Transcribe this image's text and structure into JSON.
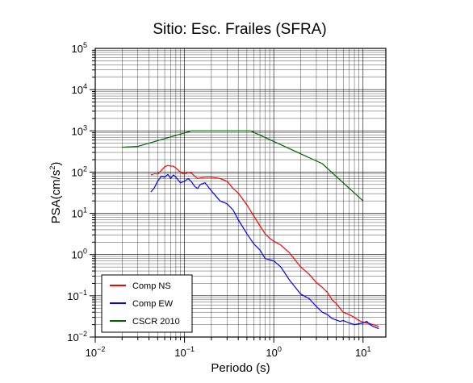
{
  "chart_data": {
    "type": "line",
    "title": "Sitio: Esc. Frailes (SFRA)",
    "xlabel": "Periodo (s)",
    "ylabel_main": "PSA(cm/s",
    "ylabel_sup": "2",
    "ylabel_close": ")",
    "xscale": "log",
    "yscale": "log",
    "xlim": [
      0.01,
      18
    ],
    "ylim": [
      0.01,
      100000
    ],
    "grid": true,
    "legend_position": "bottom-left",
    "x_tick_labels": [
      {
        "value": 0.01,
        "base": "10",
        "sup": "−2"
      },
      {
        "value": 0.1,
        "base": "10",
        "sup": "−1"
      },
      {
        "value": 1,
        "base": "10",
        "sup": "0"
      },
      {
        "value": 10,
        "base": "10",
        "sup": "1"
      }
    ],
    "y_tick_labels": [
      {
        "value": 0.01,
        "base": "10",
        "sup": "−2"
      },
      {
        "value": 0.1,
        "base": "10",
        "sup": "−1"
      },
      {
        "value": 1,
        "base": "10",
        "sup": "0"
      },
      {
        "value": 10,
        "base": "10",
        "sup": "1"
      },
      {
        "value": 100,
        "base": "10",
        "sup": "2"
      },
      {
        "value": 1000,
        "base": "10",
        "sup": "3"
      },
      {
        "value": 10000,
        "base": "10",
        "sup": "4"
      },
      {
        "value": 100000,
        "base": "10",
        "sup": "5"
      }
    ],
    "series": [
      {
        "name": "Comp NS",
        "color": "#ff0000",
        "x": [
          0.042,
          0.046,
          0.05,
          0.055,
          0.06,
          0.065,
          0.07,
          0.075,
          0.08,
          0.09,
          0.1,
          0.11,
          0.12,
          0.13,
          0.14,
          0.15,
          0.17,
          0.2,
          0.25,
          0.3,
          0.35,
          0.4,
          0.5,
          0.6,
          0.7,
          0.8,
          0.9,
          1.0,
          1.2,
          1.5,
          2.0,
          2.5,
          3.0,
          3.5,
          4.0,
          4.5,
          5.0,
          5.5,
          6.0,
          7.0,
          8.0,
          9.0,
          10.0,
          11.0,
          12.0,
          13.0,
          14.0,
          15.0
        ],
        "y": [
          85,
          92,
          90,
          110,
          135,
          145,
          140,
          140,
          125,
          100,
          90,
          100,
          95,
          80,
          70,
          72,
          75,
          75,
          70,
          60,
          40,
          31,
          16,
          8.5,
          5.0,
          3.2,
          2.5,
          2.1,
          1.7,
          1.1,
          0.5,
          0.33,
          0.21,
          0.16,
          0.12,
          0.08,
          0.065,
          0.05,
          0.04,
          0.035,
          0.03,
          0.025,
          0.023,
          0.022,
          0.021,
          0.02,
          0.019,
          0.018
        ]
      },
      {
        "name": "Comp EW",
        "color": "#0000ff",
        "x": [
          0.042,
          0.046,
          0.05,
          0.055,
          0.06,
          0.065,
          0.07,
          0.075,
          0.08,
          0.09,
          0.1,
          0.11,
          0.12,
          0.13,
          0.14,
          0.15,
          0.17,
          0.2,
          0.25,
          0.3,
          0.35,
          0.4,
          0.5,
          0.6,
          0.7,
          0.8,
          0.9,
          1.0,
          1.2,
          1.5,
          2.0,
          2.5,
          3.0,
          3.5,
          4.0,
          4.5,
          5.0,
          5.5,
          6.0,
          7.0,
          8.0,
          9.0,
          10.0,
          11.0,
          12.0,
          13.0,
          14.0,
          15.0
        ],
        "y": [
          33,
          42,
          60,
          80,
          75,
          88,
          70,
          85,
          75,
          55,
          60,
          70,
          58,
          45,
          40,
          50,
          55,
          35,
          20,
          17,
          12,
          7.0,
          3.2,
          1.8,
          1.3,
          0.8,
          0.75,
          0.7,
          0.5,
          0.24,
          0.11,
          0.085,
          0.055,
          0.04,
          0.035,
          0.028,
          0.026,
          0.024,
          0.025,
          0.022,
          0.02,
          0.021,
          0.022,
          0.024,
          0.02,
          0.018,
          0.017,
          0.016
        ]
      },
      {
        "name": "CSCR 2010",
        "color": "#006400",
        "x": [
          0.02,
          0.03,
          0.12,
          0.55,
          3.5,
          10.0
        ],
        "y": [
          400,
          420,
          1000,
          1000,
          160,
          20
        ]
      }
    ]
  }
}
